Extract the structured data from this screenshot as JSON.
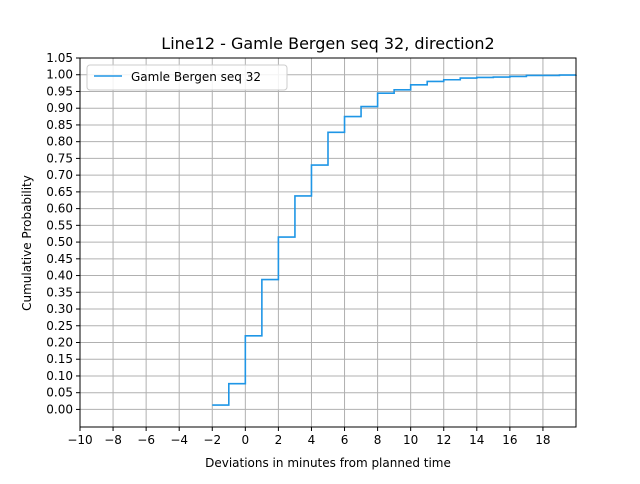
{
  "chart_data": {
    "type": "line",
    "step": true,
    "title": "Line12 - Gamle Bergen seq 32, direction2",
    "xlabel": "Deviations in minutes from planned time",
    "ylabel": "Cumulative Probability",
    "xlim": [
      -10,
      20
    ],
    "ylim": [
      -0.0525,
      1.05
    ],
    "x_ticks": [
      -10,
      -8,
      -6,
      -4,
      -2,
      0,
      2,
      4,
      6,
      8,
      10,
      12,
      14,
      16,
      18
    ],
    "x_tick_labels": [
      "−10",
      "−8",
      "−6",
      "−4",
      "−2",
      "0",
      "2",
      "4",
      "6",
      "8",
      "10",
      "12",
      "14",
      "16",
      "18"
    ],
    "y_ticks": [
      0.0,
      0.05,
      0.1,
      0.15,
      0.2,
      0.25,
      0.3,
      0.35,
      0.4,
      0.45,
      0.5,
      0.55,
      0.6,
      0.65,
      0.7,
      0.75,
      0.8,
      0.85,
      0.9,
      0.95,
      1.0,
      1.05
    ],
    "y_tick_labels": [
      "0.00",
      "0.05",
      "0.10",
      "0.15",
      "0.20",
      "0.25",
      "0.30",
      "0.35",
      "0.40",
      "0.45",
      "0.50",
      "0.55",
      "0.60",
      "0.65",
      "0.70",
      "0.75",
      "0.80",
      "0.85",
      "0.90",
      "0.95",
      "1.00",
      "1.05"
    ],
    "grid": true,
    "legend_position": "upper-left",
    "series": [
      {
        "name": "Gamle Bergen seq 32",
        "color": "#1f96e6",
        "x": [
          -2,
          -1,
          0,
          1,
          2,
          3,
          4,
          5,
          6,
          7,
          8,
          9,
          10,
          11,
          12,
          13,
          14,
          15,
          16,
          17,
          18,
          19,
          20
        ],
        "y": [
          0.013,
          0.077,
          0.22,
          0.388,
          0.515,
          0.638,
          0.73,
          0.828,
          0.875,
          0.905,
          0.945,
          0.955,
          0.97,
          0.98,
          0.985,
          0.99,
          0.992,
          0.993,
          0.995,
          0.998,
          0.998,
          0.999,
          1.0
        ]
      }
    ]
  }
}
